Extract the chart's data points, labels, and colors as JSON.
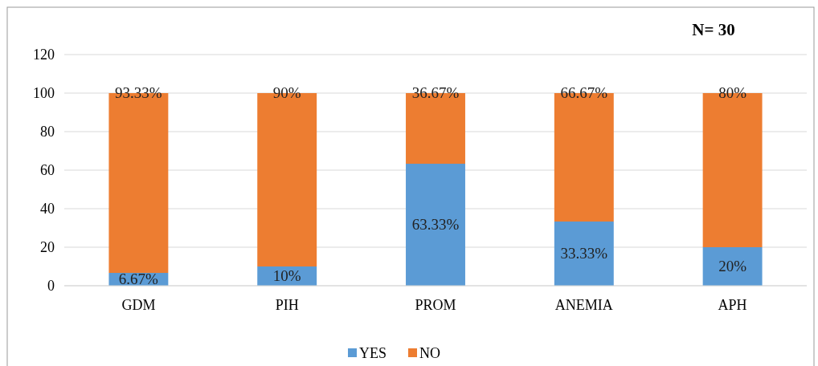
{
  "chart_data": {
    "type": "bar",
    "stacked": true,
    "categories": [
      "GDM",
      "PIH",
      "PROM",
      "ANEMIA",
      "APH"
    ],
    "series": [
      {
        "name": "YES",
        "color": "#5b9bd5",
        "values": [
          6.67,
          10,
          63.33,
          33.33,
          20
        ],
        "value_labels": [
          "6.67%",
          "10%",
          "63.33%",
          "33.33%",
          "20%"
        ]
      },
      {
        "name": "NO",
        "color": "#ed7d31",
        "values": [
          93.33,
          90,
          36.67,
          66.67,
          80
        ],
        "value_labels": [
          "93.33%",
          "90%",
          "36.67%",
          "66.67%",
          "80%"
        ]
      }
    ],
    "ylim": [
      0,
      120
    ],
    "yticks": [
      0,
      20,
      40,
      60,
      80,
      100,
      120
    ],
    "grid": "y",
    "legend": "bottom",
    "annotations": [
      "N= 30"
    ]
  }
}
